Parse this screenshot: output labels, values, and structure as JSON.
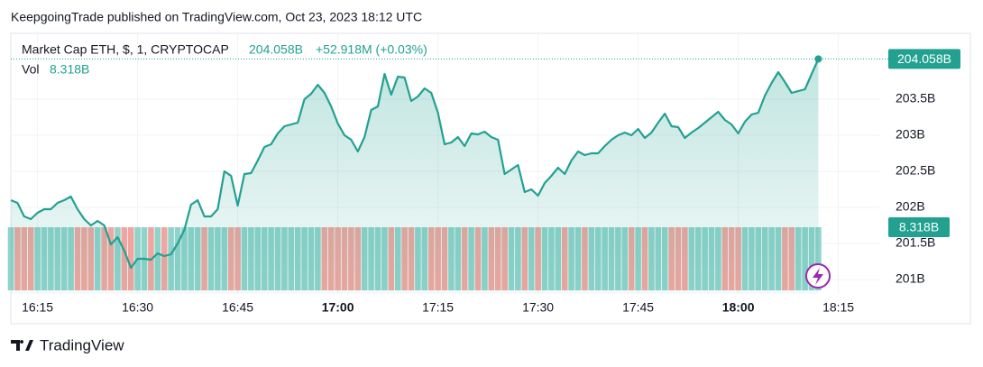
{
  "header": {
    "published": "KeepgoingTrade published on TradingView.com, Oct 23, 2023 18:12 UTC"
  },
  "footer": {
    "brand": "TradingView"
  },
  "chart_data": {
    "type": "area",
    "x": [
      "16:11",
      "16:12",
      "16:13",
      "16:14",
      "16:15",
      "16:16",
      "16:17",
      "16:18",
      "16:19",
      "16:20",
      "16:21",
      "16:22",
      "16:23",
      "16:24",
      "16:25",
      "16:26",
      "16:27",
      "16:28",
      "16:29",
      "16:30",
      "16:31",
      "16:32",
      "16:33",
      "16:34",
      "16:35",
      "16:36",
      "16:37",
      "16:38",
      "16:39",
      "16:40",
      "16:41",
      "16:42",
      "16:43",
      "16:44",
      "16:45",
      "16:46",
      "16:47",
      "16:48",
      "16:49",
      "16:50",
      "16:51",
      "16:52",
      "16:53",
      "16:54",
      "16:55",
      "16:56",
      "16:57",
      "16:58",
      "16:59",
      "17:00",
      "17:01",
      "17:02",
      "17:03",
      "17:04",
      "17:05",
      "17:06",
      "17:07",
      "17:08",
      "17:09",
      "17:10",
      "17:11",
      "17:12",
      "17:13",
      "17:14",
      "17:15",
      "17:16",
      "17:17",
      "17:18",
      "17:19",
      "17:20",
      "17:21",
      "17:22",
      "17:23",
      "17:24",
      "17:25",
      "17:26",
      "17:27",
      "17:28",
      "17:29",
      "17:30",
      "17:31",
      "17:32",
      "17:33",
      "17:34",
      "17:35",
      "17:36",
      "17:37",
      "17:38",
      "17:39",
      "17:40",
      "17:41",
      "17:42",
      "17:43",
      "17:44",
      "17:45",
      "17:46",
      "17:47",
      "17:48",
      "17:49",
      "17:50",
      "17:51",
      "17:52",
      "17:53",
      "17:54",
      "17:55",
      "17:56",
      "17:57",
      "17:58",
      "17:59",
      "18:00",
      "18:01",
      "18:02",
      "18:03",
      "18:04",
      "18:05",
      "18:06",
      "18:07",
      "18:08",
      "18:09",
      "18:10",
      "18:11",
      "18:12"
    ],
    "series": [
      {
        "name": "Market Cap ETH, $, 1, CRYPTOCAP",
        "color": "#22a191",
        "last_label": "204.058B",
        "change_label": "+52.918M (+0.03%)",
        "values": [
          202.1,
          202.063,
          201.875,
          201.838,
          201.925,
          201.975,
          201.975,
          202.063,
          202.1,
          202.15,
          201.975,
          201.838,
          201.75,
          201.813,
          201.75,
          201.488,
          201.588,
          201.4,
          201.163,
          201.288,
          201.288,
          201.275,
          201.363,
          201.325,
          201.35,
          201.5,
          201.688,
          202.038,
          202.1,
          201.875,
          201.875,
          201.975,
          202.5,
          202.438,
          202.025,
          202.463,
          202.475,
          202.65,
          202.838,
          202.875,
          203.025,
          203.125,
          203.15,
          203.175,
          203.5,
          203.575,
          203.7,
          203.588,
          203.4,
          203.163,
          203,
          202.938,
          202.775,
          202.975,
          203.35,
          203.4,
          203.85,
          203.563,
          203.813,
          203.8,
          203.475,
          203.538,
          203.65,
          203.588,
          203.313,
          202.875,
          202.9,
          202.975,
          202.85,
          203.025,
          203.013,
          203.05,
          202.975,
          202.938,
          202.463,
          202.525,
          202.588,
          202.213,
          202.25,
          202.163,
          202.338,
          202.438,
          202.55,
          202.463,
          202.65,
          202.775,
          202.725,
          202.75,
          202.75,
          202.85,
          202.938,
          203,
          203.038,
          203,
          203.088,
          202.963,
          203.038,
          203.175,
          203.3,
          203.125,
          203.113,
          202.963,
          203.038,
          203.1,
          203.175,
          203.25,
          203.325,
          203.213,
          203.15,
          203.025,
          203.188,
          203.288,
          203.313,
          203.55,
          203.725,
          203.875,
          203.738,
          203.588,
          203.613,
          203.638,
          203.85,
          204.058
        ]
      },
      {
        "name": "Vol",
        "type": "volume",
        "up_color": "#8fd3cb",
        "down_color": "#f0a6a0",
        "last_label": "8.318B",
        "values": [
          8.318,
          8.318,
          8.318,
          8.318,
          8.318,
          8.318,
          8.318,
          8.318,
          8.318,
          8.318,
          8.318,
          8.318,
          8.318,
          8.318,
          8.318,
          8.318,
          8.318,
          8.318,
          8.318,
          8.318,
          8.318,
          8.318,
          8.318,
          8.318,
          8.318,
          8.318,
          8.318,
          8.318,
          8.318,
          8.318,
          8.318,
          8.318,
          8.318,
          8.318,
          8.318,
          8.318,
          8.318,
          8.318,
          8.318,
          8.318,
          8.318,
          8.318,
          8.318,
          8.318,
          8.318,
          8.318,
          8.318,
          8.318,
          8.318,
          8.318,
          8.318,
          8.318,
          8.318,
          8.318,
          8.318,
          8.318,
          8.318,
          8.318,
          8.318,
          8.318,
          8.318,
          8.318,
          8.318,
          8.318,
          8.318,
          8.318,
          8.318,
          8.318,
          8.318,
          8.318,
          8.318,
          8.318,
          8.318,
          8.318,
          8.318,
          8.318,
          8.318,
          8.318,
          8.318,
          8.318,
          8.318,
          8.318,
          8.318,
          8.318,
          8.318,
          8.318,
          8.318,
          8.318,
          8.318,
          8.318,
          8.318,
          8.318,
          8.318,
          8.318,
          8.318,
          8.318,
          8.318,
          8.318,
          8.318,
          8.318,
          8.318,
          8.318,
          8.318,
          8.318,
          8.318,
          8.318,
          8.318,
          8.318,
          8.318,
          8.318,
          8.318,
          8.318,
          8.318,
          8.318,
          8.318,
          8.318,
          8.318,
          8.318,
          8.318,
          8.318,
          8.318,
          8.318
        ]
      }
    ],
    "ylim": [
      200.8,
      204.4
    ],
    "yticks": [
      {
        "value": 201,
        "label": "201B"
      },
      {
        "value": 201.5,
        "label": "201.5B"
      },
      {
        "value": 202,
        "label": "202B"
      },
      {
        "value": 202.5,
        "label": "202.5B"
      },
      {
        "value": 203,
        "label": "203B"
      },
      {
        "value": 203.5,
        "label": "203.5B"
      }
    ],
    "xticks": [
      "16:15",
      "16:30",
      "16:45",
      "17:00",
      "17:15",
      "17:30",
      "17:45",
      "18:00",
      "18:15"
    ]
  }
}
